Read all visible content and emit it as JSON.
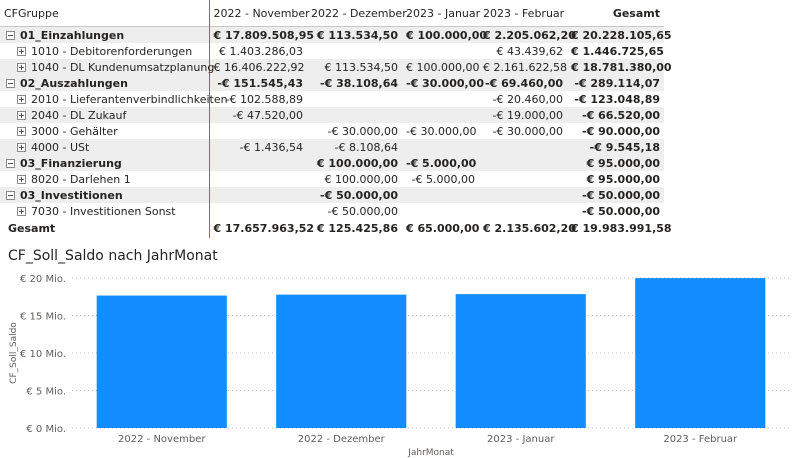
{
  "matrix": {
    "headers": [
      "CFGruppe",
      "2022 - November",
      "2022 - Dezember",
      "2023 - Januar",
      "2023 - Februar",
      "Gesamt"
    ],
    "rows": [
      {
        "type": "group",
        "label": "01_Einzahlungen",
        "cells": [
          "€ 17.809.508,95",
          "€ 113.534,50",
          "€ 100.000,00",
          "€ 2.205.062,20",
          "€ 20.228.105,65"
        ]
      },
      {
        "type": "sub",
        "label": "1010 - Debitorenforderungen",
        "cells": [
          "€ 1.403.286,03",
          "",
          "",
          "€ 43.439,62",
          "€ 1.446.725,65"
        ]
      },
      {
        "type": "sub",
        "label": "1040 - DL Kundenumsatzplanung",
        "cells": [
          "€ 16.406.222,92",
          "€ 113.534,50",
          "€ 100.000,00",
          "€ 2.161.622,58",
          "€ 18.781.380,00"
        ]
      },
      {
        "type": "group",
        "label": "02_Auszahlungen",
        "cells": [
          "-€ 151.545,43",
          "-€ 38.108,64",
          "-€ 30.000,00",
          "-€ 69.460,00",
          "-€ 289.114,07"
        ]
      },
      {
        "type": "sub",
        "label": "2010 - Lieferantenverbindlichkeiten",
        "cells": [
          "-€ 102.588,89",
          "",
          "",
          "-€ 20.460,00",
          "-€ 123.048,89"
        ]
      },
      {
        "type": "sub",
        "label": "2040 - DL Zukauf",
        "cells": [
          "-€ 47.520,00",
          "",
          "",
          "-€ 19.000,00",
          "-€ 66.520,00"
        ]
      },
      {
        "type": "sub",
        "label": "3000 - Gehälter",
        "cells": [
          "",
          "-€ 30.000,00",
          "-€ 30.000,00",
          "-€ 30.000,00",
          "-€ 90.000,00"
        ]
      },
      {
        "type": "sub",
        "label": "4000 - USt",
        "cells": [
          "-€ 1.436,54",
          "-€ 8.108,64",
          "",
          "",
          "-€ 9.545,18"
        ]
      },
      {
        "type": "group",
        "label": "03_Finanzierung",
        "cells": [
          "",
          "€ 100.000,00",
          "-€ 5.000,00",
          "",
          "€ 95.000,00"
        ]
      },
      {
        "type": "sub",
        "label": "8020 - Darlehen 1",
        "cells": [
          "",
          "€ 100.000,00",
          "-€ 5.000,00",
          "",
          "€ 95.000,00"
        ]
      },
      {
        "type": "group",
        "label": "03_Investitionen",
        "cells": [
          "",
          "-€ 50.000,00",
          "",
          "",
          "-€ 50.000,00"
        ]
      },
      {
        "type": "sub",
        "label": "7030 - Investitionen Sonst",
        "cells": [
          "",
          "-€ 50.000,00",
          "",
          "",
          "-€ 50.000,00"
        ]
      },
      {
        "type": "grand",
        "label": "Gesamt",
        "cells": [
          "€ 17.657.963,52",
          "€ 125.425,86",
          "€ 65.000,00",
          "€ 2.135.602,20",
          "€ 19.983.991,58"
        ]
      }
    ]
  },
  "chart_data": {
    "type": "bar",
    "title": "CF_Soll_Saldo nach JahrMonat",
    "xlabel": "JahrMonat",
    "ylabel": "CF_Soll_Saldo",
    "categories": [
      "2022 - November",
      "2022 - Dezember",
      "2023 - Januar",
      "2023 - Februar"
    ],
    "values": [
      17657963.52,
      17783389.38,
      17848389.38,
      19983991.58
    ],
    "ylim": [
      0,
      20000000
    ],
    "yticks": [
      0,
      5000000,
      10000000,
      15000000,
      20000000
    ],
    "ytick_labels": [
      "€ 0 Mio.",
      "€ 5 Mio.",
      "€ 10 Mio.",
      "€ 15 Mio.",
      "€ 20 Mio."
    ],
    "grid": true,
    "bar_color": "#118dff"
  }
}
